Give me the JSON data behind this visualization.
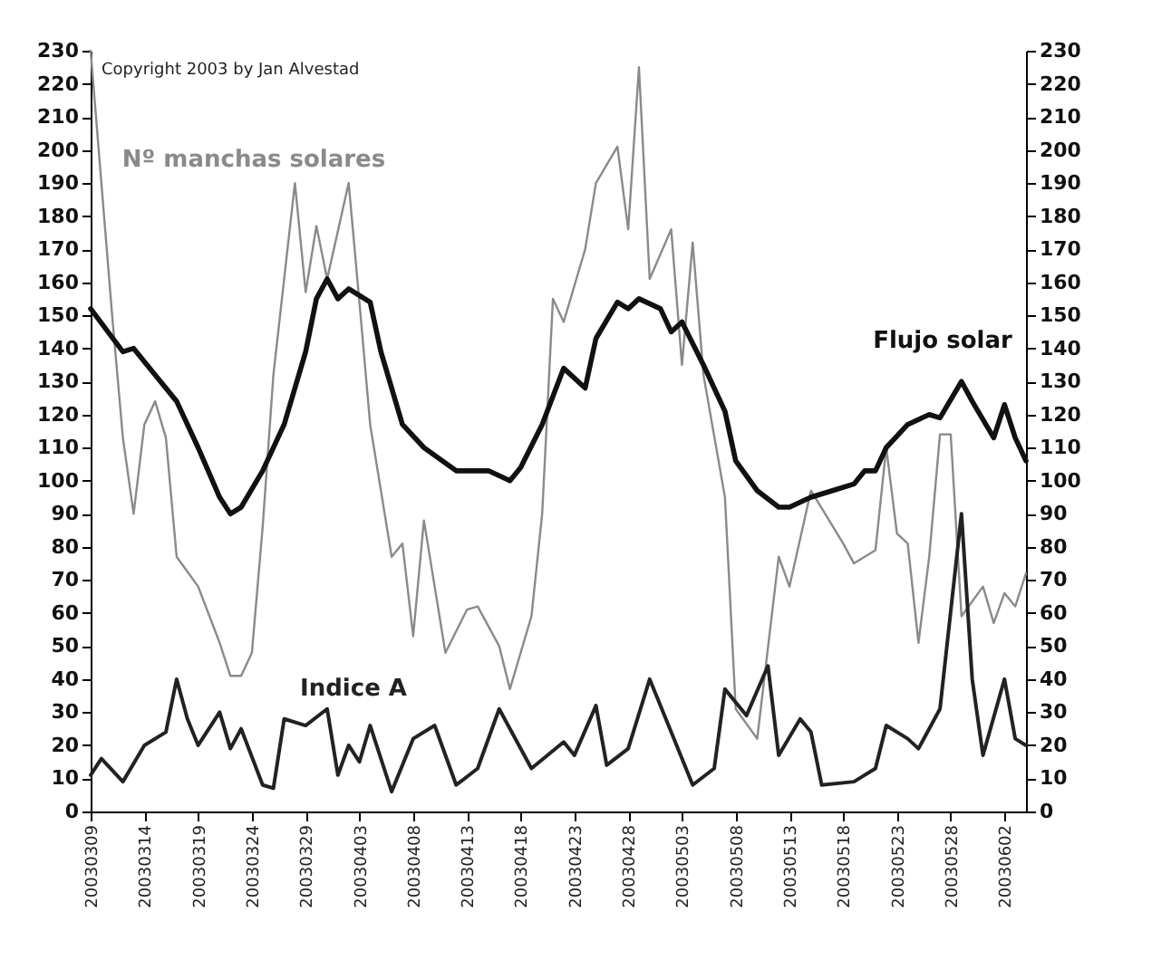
{
  "chart_data": {
    "type": "line",
    "annotations": [
      "Copyright 2003 by Jan Alvestad"
    ],
    "xlim": [
      "2003-03-09",
      "2003-06-04"
    ],
    "xticks": [
      {
        "value": "2003-03-09",
        "label": "20030309"
      },
      {
        "value": "2003-03-14",
        "label": "20030314"
      },
      {
        "value": "2003-03-19",
        "label": "20030319"
      },
      {
        "value": "2003-03-24",
        "label": "20030324"
      },
      {
        "value": "2003-03-29",
        "label": "20030329"
      },
      {
        "value": "2003-04-03",
        "label": "20030403"
      },
      {
        "value": "2003-04-08",
        "label": "20030408"
      },
      {
        "value": "2003-04-13",
        "label": "20030413"
      },
      {
        "value": "2003-04-18",
        "label": "20030418"
      },
      {
        "value": "2003-04-23",
        "label": "20030423"
      },
      {
        "value": "2003-04-28",
        "label": "20030428"
      },
      {
        "value": "2003-05-03",
        "label": "20030503"
      },
      {
        "value": "2003-05-08",
        "label": "20030508"
      },
      {
        "value": "2003-05-13",
        "label": "20030513"
      },
      {
        "value": "2003-05-18",
        "label": "20030518"
      },
      {
        "value": "2003-05-23",
        "label": "20030523"
      },
      {
        "value": "2003-05-28",
        "label": "20030528"
      },
      {
        "value": "2003-06-02",
        "label": "20030602"
      }
    ],
    "ylim": [
      0,
      230
    ],
    "yticks": [
      0,
      10,
      20,
      30,
      40,
      50,
      60,
      70,
      80,
      90,
      100,
      110,
      120,
      130,
      140,
      150,
      160,
      170,
      180,
      190,
      200,
      210,
      220,
      230
    ],
    "y2lim": [
      0,
      230
    ],
    "y2ticks": [
      0,
      10,
      20,
      30,
      40,
      50,
      60,
      70,
      80,
      90,
      100,
      110,
      120,
      130,
      140,
      150,
      160,
      170,
      180,
      190,
      200,
      210,
      220,
      230
    ],
    "grid": false,
    "legend": false,
    "series": [
      {
        "name": "Nº manchas solares",
        "color": "#8a8a8a",
        "x": [
          "2003-03-09",
          "2003-03-10",
          "2003-03-11",
          "2003-03-12",
          "2003-03-13",
          "2003-03-14",
          "2003-03-15",
          "2003-03-16",
          "2003-03-17",
          "2003-03-19",
          "2003-03-21",
          "2003-03-22",
          "2003-03-23",
          "2003-03-24",
          "2003-03-25",
          "2003-03-26",
          "2003-03-28",
          "2003-03-29",
          "2003-03-30",
          "2003-03-31",
          "2003-04-02",
          "2003-04-03",
          "2003-04-04",
          "2003-04-06",
          "2003-04-07",
          "2003-04-08",
          "2003-04-09",
          "2003-04-11",
          "2003-04-13",
          "2003-04-14",
          "2003-04-16",
          "2003-04-17",
          "2003-04-19",
          "2003-04-20",
          "2003-04-21",
          "2003-04-22",
          "2003-04-24",
          "2003-04-25",
          "2003-04-27",
          "2003-04-28",
          "2003-04-29",
          "2003-04-30",
          "2003-05-02",
          "2003-05-03",
          "2003-05-04",
          "2003-05-05",
          "2003-05-07",
          "2003-05-08",
          "2003-05-10",
          "2003-05-12",
          "2003-05-13",
          "2003-05-15",
          "2003-05-18",
          "2003-05-19",
          "2003-05-21",
          "2003-05-22",
          "2003-05-23",
          "2003-05-24",
          "2003-05-25",
          "2003-05-26",
          "2003-05-27",
          "2003-05-28",
          "2003-05-29",
          "2003-05-31",
          "2003-06-01",
          "2003-06-02",
          "2003-06-03",
          "2003-06-04"
        ],
        "values": [
          230,
          190,
          150,
          113,
          90,
          117,
          124,
          113,
          77,
          68,
          51,
          41,
          41,
          48,
          86,
          132,
          190,
          157,
          177,
          161,
          190,
          154,
          117,
          77,
          81,
          53,
          88,
          48,
          61,
          62,
          50,
          37,
          59,
          90,
          155,
          148,
          170,
          190,
          201,
          176,
          225,
          161,
          176,
          135,
          172,
          132,
          95,
          31,
          22,
          77,
          68,
          97,
          81,
          75,
          79,
          110,
          84,
          81,
          51,
          77,
          114,
          114,
          59,
          68,
          57,
          66,
          62,
          72
        ]
      },
      {
        "name": "Flujo solar",
        "color": "#111111",
        "x": [
          "2003-03-09",
          "2003-03-12",
          "2003-03-13",
          "2003-03-15",
          "2003-03-17",
          "2003-03-19",
          "2003-03-21",
          "2003-03-22",
          "2003-03-23",
          "2003-03-25",
          "2003-03-27",
          "2003-03-29",
          "2003-03-30",
          "2003-03-31",
          "2003-04-01",
          "2003-04-02",
          "2003-04-04",
          "2003-04-05",
          "2003-04-07",
          "2003-04-09",
          "2003-04-12",
          "2003-04-15",
          "2003-04-17",
          "2003-04-18",
          "2003-04-20",
          "2003-04-22",
          "2003-04-24",
          "2003-04-25",
          "2003-04-27",
          "2003-04-28",
          "2003-04-29",
          "2003-05-01",
          "2003-05-02",
          "2003-05-03",
          "2003-05-05",
          "2003-05-07",
          "2003-05-08",
          "2003-05-10",
          "2003-05-12",
          "2003-05-13",
          "2003-05-15",
          "2003-05-17",
          "2003-05-19",
          "2003-05-20",
          "2003-05-21",
          "2003-05-22",
          "2003-05-24",
          "2003-05-26",
          "2003-05-27",
          "2003-05-29",
          "2003-05-30",
          "2003-06-01",
          "2003-06-02",
          "2003-06-03",
          "2003-06-04"
        ],
        "values": [
          152,
          139,
          140,
          132,
          124,
          110,
          95,
          90,
          92,
          103,
          117,
          139,
          155,
          161,
          155,
          158,
          154,
          139,
          117,
          110,
          103,
          103,
          100,
          104,
          117,
          134,
          128,
          143,
          154,
          152,
          155,
          152,
          145,
          148,
          135,
          121,
          106,
          97,
          92,
          92,
          95,
          97,
          99,
          103,
          103,
          110,
          117,
          120,
          119,
          130,
          124,
          113,
          123,
          113,
          106
        ]
      },
      {
        "name": "Indice A",
        "color": "#222222",
        "axis": "y2",
        "x": [
          "2003-03-09",
          "2003-03-10",
          "2003-03-12",
          "2003-03-14",
          "2003-03-16",
          "2003-03-17",
          "2003-03-18",
          "2003-03-19",
          "2003-03-21",
          "2003-03-22",
          "2003-03-23",
          "2003-03-25",
          "2003-03-26",
          "2003-03-27",
          "2003-03-29",
          "2003-03-31",
          "2003-04-01",
          "2003-04-02",
          "2003-04-03",
          "2003-04-04",
          "2003-04-06",
          "2003-04-08",
          "2003-04-10",
          "2003-04-12",
          "2003-04-14",
          "2003-04-16",
          "2003-04-19",
          "2003-04-22",
          "2003-04-23",
          "2003-04-25",
          "2003-04-26",
          "2003-04-28",
          "2003-04-30",
          "2003-05-02",
          "2003-05-04",
          "2003-05-06",
          "2003-05-07",
          "2003-05-09",
          "2003-05-11",
          "2003-05-12",
          "2003-05-14",
          "2003-05-15",
          "2003-05-16",
          "2003-05-19",
          "2003-05-21",
          "2003-05-22",
          "2003-05-24",
          "2003-05-25",
          "2003-05-27",
          "2003-05-29",
          "2003-05-30",
          "2003-05-31",
          "2003-06-02",
          "2003-06-03",
          "2003-06-04"
        ],
        "values": [
          11,
          16,
          9,
          20,
          24,
          40,
          28,
          20,
          30,
          19,
          25,
          8,
          7,
          28,
          26,
          31,
          11,
          20,
          15,
          26,
          6,
          22,
          26,
          8,
          13,
          31,
          13,
          21,
          17,
          32,
          14,
          19,
          40,
          24,
          8,
          13,
          37,
          29,
          44,
          17,
          28,
          24,
          8,
          9,
          13,
          26,
          22,
          19,
          31,
          90,
          40,
          17,
          40,
          22,
          20
        ]
      }
    ]
  }
}
